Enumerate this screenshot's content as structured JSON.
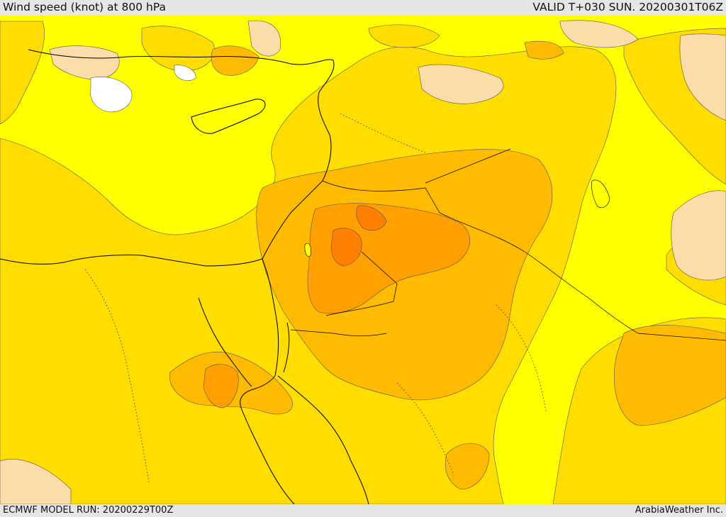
{
  "header": {
    "title": "Wind speed (knot) at 800 hPa",
    "valid": "VALID T+030 SUN. 20200301T06Z"
  },
  "footer": {
    "model_run": "ECMWF MODEL RUN: 20200229T00Z",
    "credit": "ArabiaWeather Inc."
  },
  "colors": {
    "calm_white": "#ffffff",
    "light_peach": "#fcdca8",
    "yellow": "#ffff00",
    "gold": "#ffdd00",
    "amber": "#ffbb00",
    "orange": "#ff9f00",
    "deep_orange": "#ff8000",
    "coastline": "#000000"
  }
}
